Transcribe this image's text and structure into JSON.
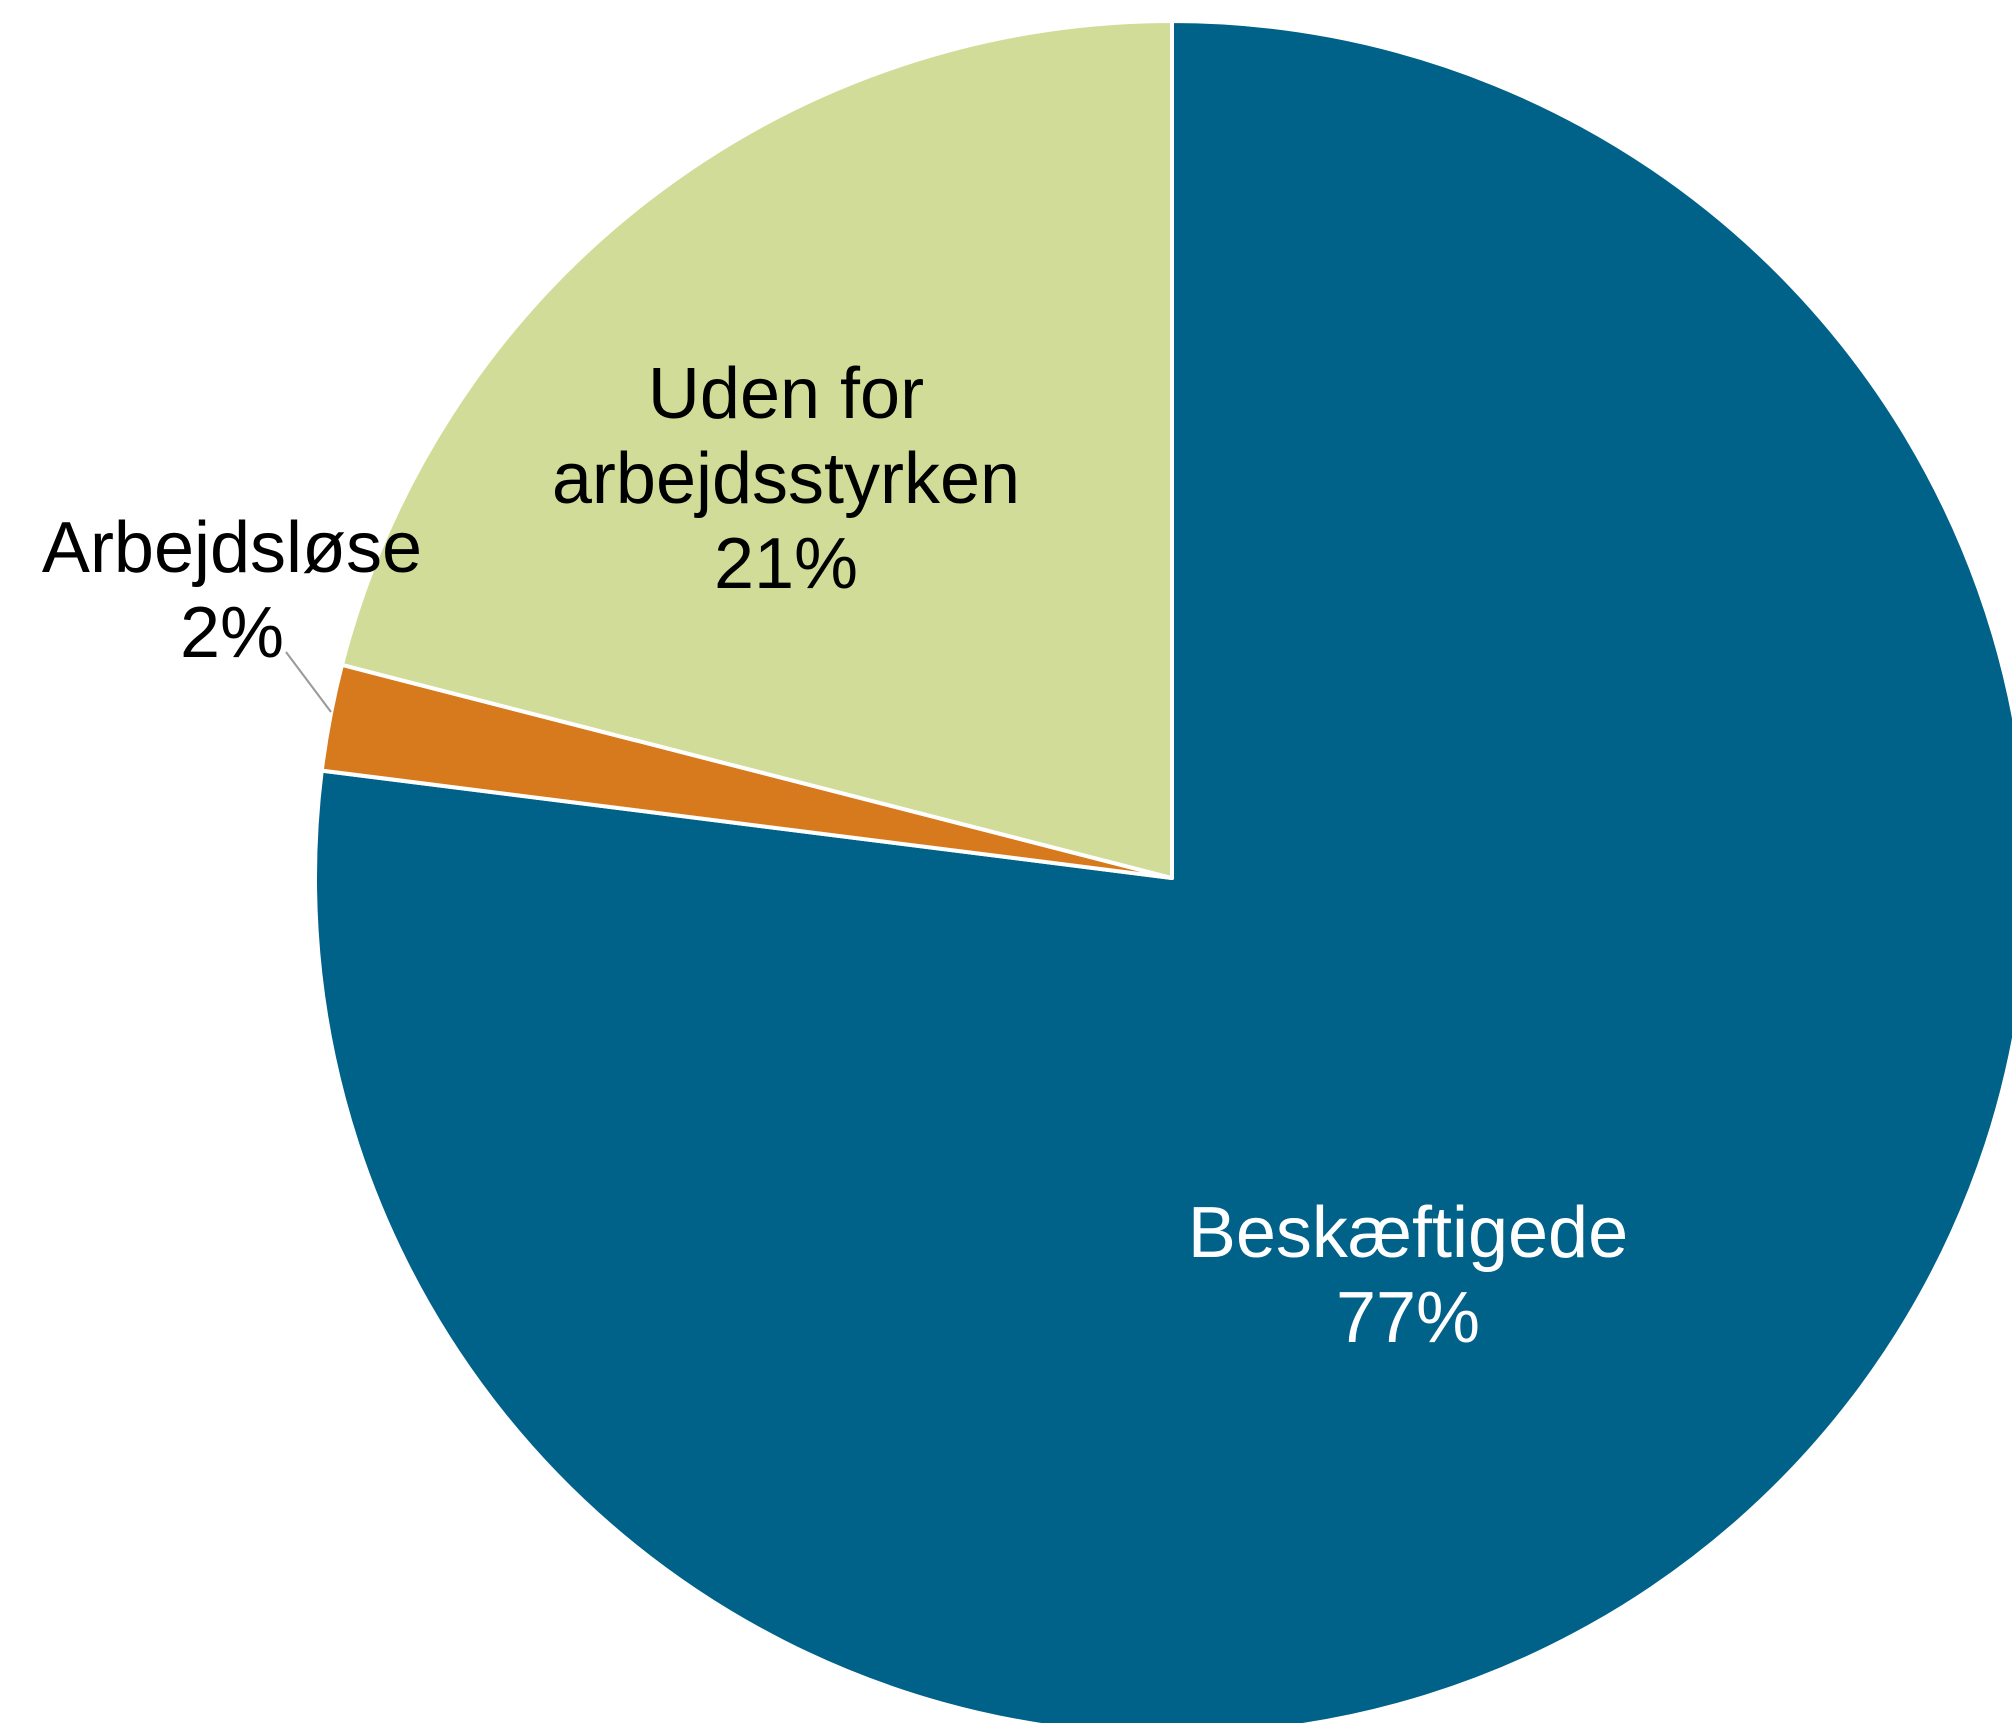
{
  "chart_data": {
    "type": "pie",
    "title": "",
    "slices": [
      {
        "label": "Beskæftigede",
        "value": 77,
        "value_label": "77%",
        "color": "#006189",
        "text_color": "#ffffff"
      },
      {
        "label": "Arbejdsløse",
        "value": 2,
        "value_label": "2%",
        "color": "#d77a1e",
        "text_color": "#000000"
      },
      {
        "label": "Uden for arbejdsstyrken",
        "label_lines": [
          "Uden for",
          "arbejdsstyrken"
        ],
        "value": 21,
        "value_label": "21%",
        "color": "#d0dc97",
        "text_color": "#000000"
      }
    ],
    "start": "12 o'clock",
    "direction": "clockwise",
    "legend": "none",
    "slice_border_color": "#ffffff"
  }
}
